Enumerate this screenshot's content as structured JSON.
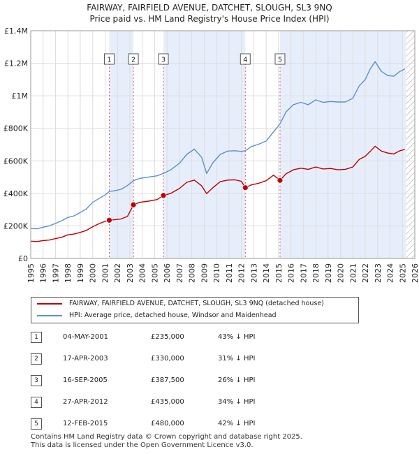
{
  "chart_title": {
    "line1": "FAIRWAY, FAIRFIELD AVENUE, DATCHET, SLOUGH, SL3 9NQ",
    "line2": "Price paid vs. HM Land Registry's House Price Index (HPI)"
  },
  "colors": {
    "property": "#c00000",
    "hpi": "#5b8fd4",
    "shade": "#e7eefb",
    "guide": "#e05a5a",
    "grid": "#dddddd",
    "hatch": "#999999"
  },
  "chart_data": {
    "type": "line",
    "title": "FAIRWAY, FAIRFIELD AVENUE, DATCHET, SLOUGH, SL3 9NQ",
    "subtitle": "Price paid vs. HM Land Registry's House Price Index (HPI)",
    "xlim": [
      1995,
      2026
    ],
    "ylim": [
      0,
      1400000
    ],
    "x_ticks": [
      1995,
      1996,
      1997,
      1998,
      1999,
      2000,
      2001,
      2002,
      2003,
      2004,
      2005,
      2006,
      2007,
      2008,
      2009,
      2010,
      2011,
      2012,
      2013,
      2014,
      2015,
      2016,
      2017,
      2018,
      2019,
      2020,
      2021,
      2022,
      2023,
      2024,
      2025,
      2026
    ],
    "y_ticks": [
      {
        "value": 0,
        "label": "£0"
      },
      {
        "value": 200000,
        "label": "£200K"
      },
      {
        "value": 400000,
        "label": "£400K"
      },
      {
        "value": 600000,
        "label": "£600K"
      },
      {
        "value": 800000,
        "label": "£800K"
      },
      {
        "value": 1000000,
        "label": "£1M"
      },
      {
        "value": 1200000,
        "label": "£1.2M"
      },
      {
        "value": 1400000,
        "label": "£1.4M"
      }
    ],
    "grid": true,
    "shaded_periods": [
      [
        2001.34,
        2003.29
      ],
      [
        2005.71,
        2012.32
      ],
      [
        2015.12,
        2025.3
      ]
    ],
    "hatched_from": 2025.3,
    "series": [
      {
        "name": "FAIRWAY, FAIRFIELD AVENUE, DATCHET, SLOUGH, SL3 9NQ (detached house)",
        "color": "#c00000",
        "x": [
          1995,
          1995.5,
          1996,
          1996.5,
          1997,
          1997.5,
          1998,
          1998.5,
          1999,
          1999.5,
          2000,
          2000.5,
          2001,
          2001.34,
          2001.8,
          2002.3,
          2002.8,
          2003.1,
          2003.29,
          2003.8,
          2004.5,
          2005.2,
          2005.71,
          2006.3,
          2007,
          2007.6,
          2008.2,
          2008.8,
          2009.2,
          2009.7,
          2010.3,
          2010.9,
          2011.5,
          2012.0,
          2012.32,
          2012.8,
          2013.4,
          2014.0,
          2014.6,
          2015.12,
          2015.6,
          2016.2,
          2016.8,
          2017.4,
          2018.0,
          2018.6,
          2019.2,
          2019.8,
          2020.4,
          2021.0,
          2021.5,
          2022.0,
          2022.4,
          2022.8,
          2023.3,
          2023.8,
          2024.3,
          2024.8,
          2025.2
        ],
        "values": [
          106000,
          104000,
          110000,
          113000,
          122000,
          130000,
          145000,
          150000,
          160000,
          172000,
          195000,
          213000,
          228000,
          235000,
          238000,
          243000,
          258000,
          300000,
          330000,
          345000,
          352000,
          362000,
          387500,
          400000,
          430000,
          468000,
          482000,
          446000,
          398000,
          435000,
          472000,
          482000,
          483000,
          474000,
          435000,
          452000,
          462000,
          478000,
          512000,
          480000,
          520000,
          545000,
          555000,
          548000,
          562000,
          550000,
          553000,
          545000,
          548000,
          562000,
          608000,
          628000,
          658000,
          690000,
          660000,
          648000,
          642000,
          662000,
          670000
        ]
      },
      {
        "name": "HPI: Average price, detached house, Windsor and Maidenhead",
        "color": "#5b8fd4",
        "x": [
          1995,
          1995.5,
          1996,
          1996.5,
          1997,
          1997.5,
          1998,
          1998.5,
          1999,
          1999.5,
          2000,
          2000.5,
          2001,
          2001.34,
          2001.8,
          2002.3,
          2002.8,
          2003.29,
          2003.8,
          2004.5,
          2005.2,
          2005.71,
          2006.3,
          2007,
          2007.6,
          2008.2,
          2008.8,
          2009.2,
          2009.7,
          2010.3,
          2010.9,
          2011.5,
          2012.0,
          2012.32,
          2012.8,
          2013.4,
          2014.0,
          2014.6,
          2015.12,
          2015.6,
          2016.2,
          2016.8,
          2017.4,
          2018.0,
          2018.6,
          2019.2,
          2019.8,
          2020.4,
          2021.0,
          2021.5,
          2022.0,
          2022.4,
          2022.8,
          2023.3,
          2023.8,
          2024.3,
          2024.8,
          2025.2
        ],
        "values": [
          185000,
          182000,
          192000,
          200000,
          215000,
          232000,
          252000,
          262000,
          282000,
          305000,
          345000,
          368000,
          390000,
          412000,
          416000,
          425000,
          448000,
          478000,
          492000,
          500000,
          508000,
          523000,
          545000,
          585000,
          640000,
          672000,
          622000,
          522000,
          588000,
          640000,
          660000,
          662000,
          658000,
          662000,
          688000,
          702000,
          722000,
          778000,
          828000,
          900000,
          945000,
          960000,
          945000,
          975000,
          960000,
          965000,
          962000,
          962000,
          985000,
          1060000,
          1100000,
          1165000,
          1210000,
          1150000,
          1125000,
          1120000,
          1150000,
          1165000
        ]
      }
    ],
    "markers": [
      {
        "label": "1",
        "x": 2001.34,
        "value": 235000
      },
      {
        "label": "2",
        "x": 2003.29,
        "value": 330000
      },
      {
        "label": "3",
        "x": 2005.71,
        "value": 387500
      },
      {
        "label": "4",
        "x": 2012.32,
        "value": 435000
      },
      {
        "label": "5",
        "x": 2015.12,
        "value": 480000
      }
    ]
  },
  "legend": {
    "property_label": "FAIRWAY, FAIRFIELD AVENUE, DATCHET, SLOUGH, SL3 9NQ (detached house)",
    "hpi_label": "HPI: Average price, detached house, Windsor and Maidenhead"
  },
  "sales": [
    {
      "num": "1",
      "date": "04-MAY-2001",
      "price": "£235,000",
      "hpi": "43% ↓ HPI"
    },
    {
      "num": "2",
      "date": "17-APR-2003",
      "price": "£330,000",
      "hpi": "31% ↓ HPI"
    },
    {
      "num": "3",
      "date": "16-SEP-2005",
      "price": "£387,500",
      "hpi": "26% ↓ HPI"
    },
    {
      "num": "4",
      "date": "27-APR-2012",
      "price": "£435,000",
      "hpi": "34% ↓ HPI"
    },
    {
      "num": "5",
      "date": "12-FEB-2015",
      "price": "£480,000",
      "hpi": "42% ↓ HPI"
    }
  ],
  "footer": {
    "line1": "Contains HM Land Registry data © Crown copyright and database right 2025.",
    "line2": "This data is licensed under the Open Government Licence v3.0."
  }
}
